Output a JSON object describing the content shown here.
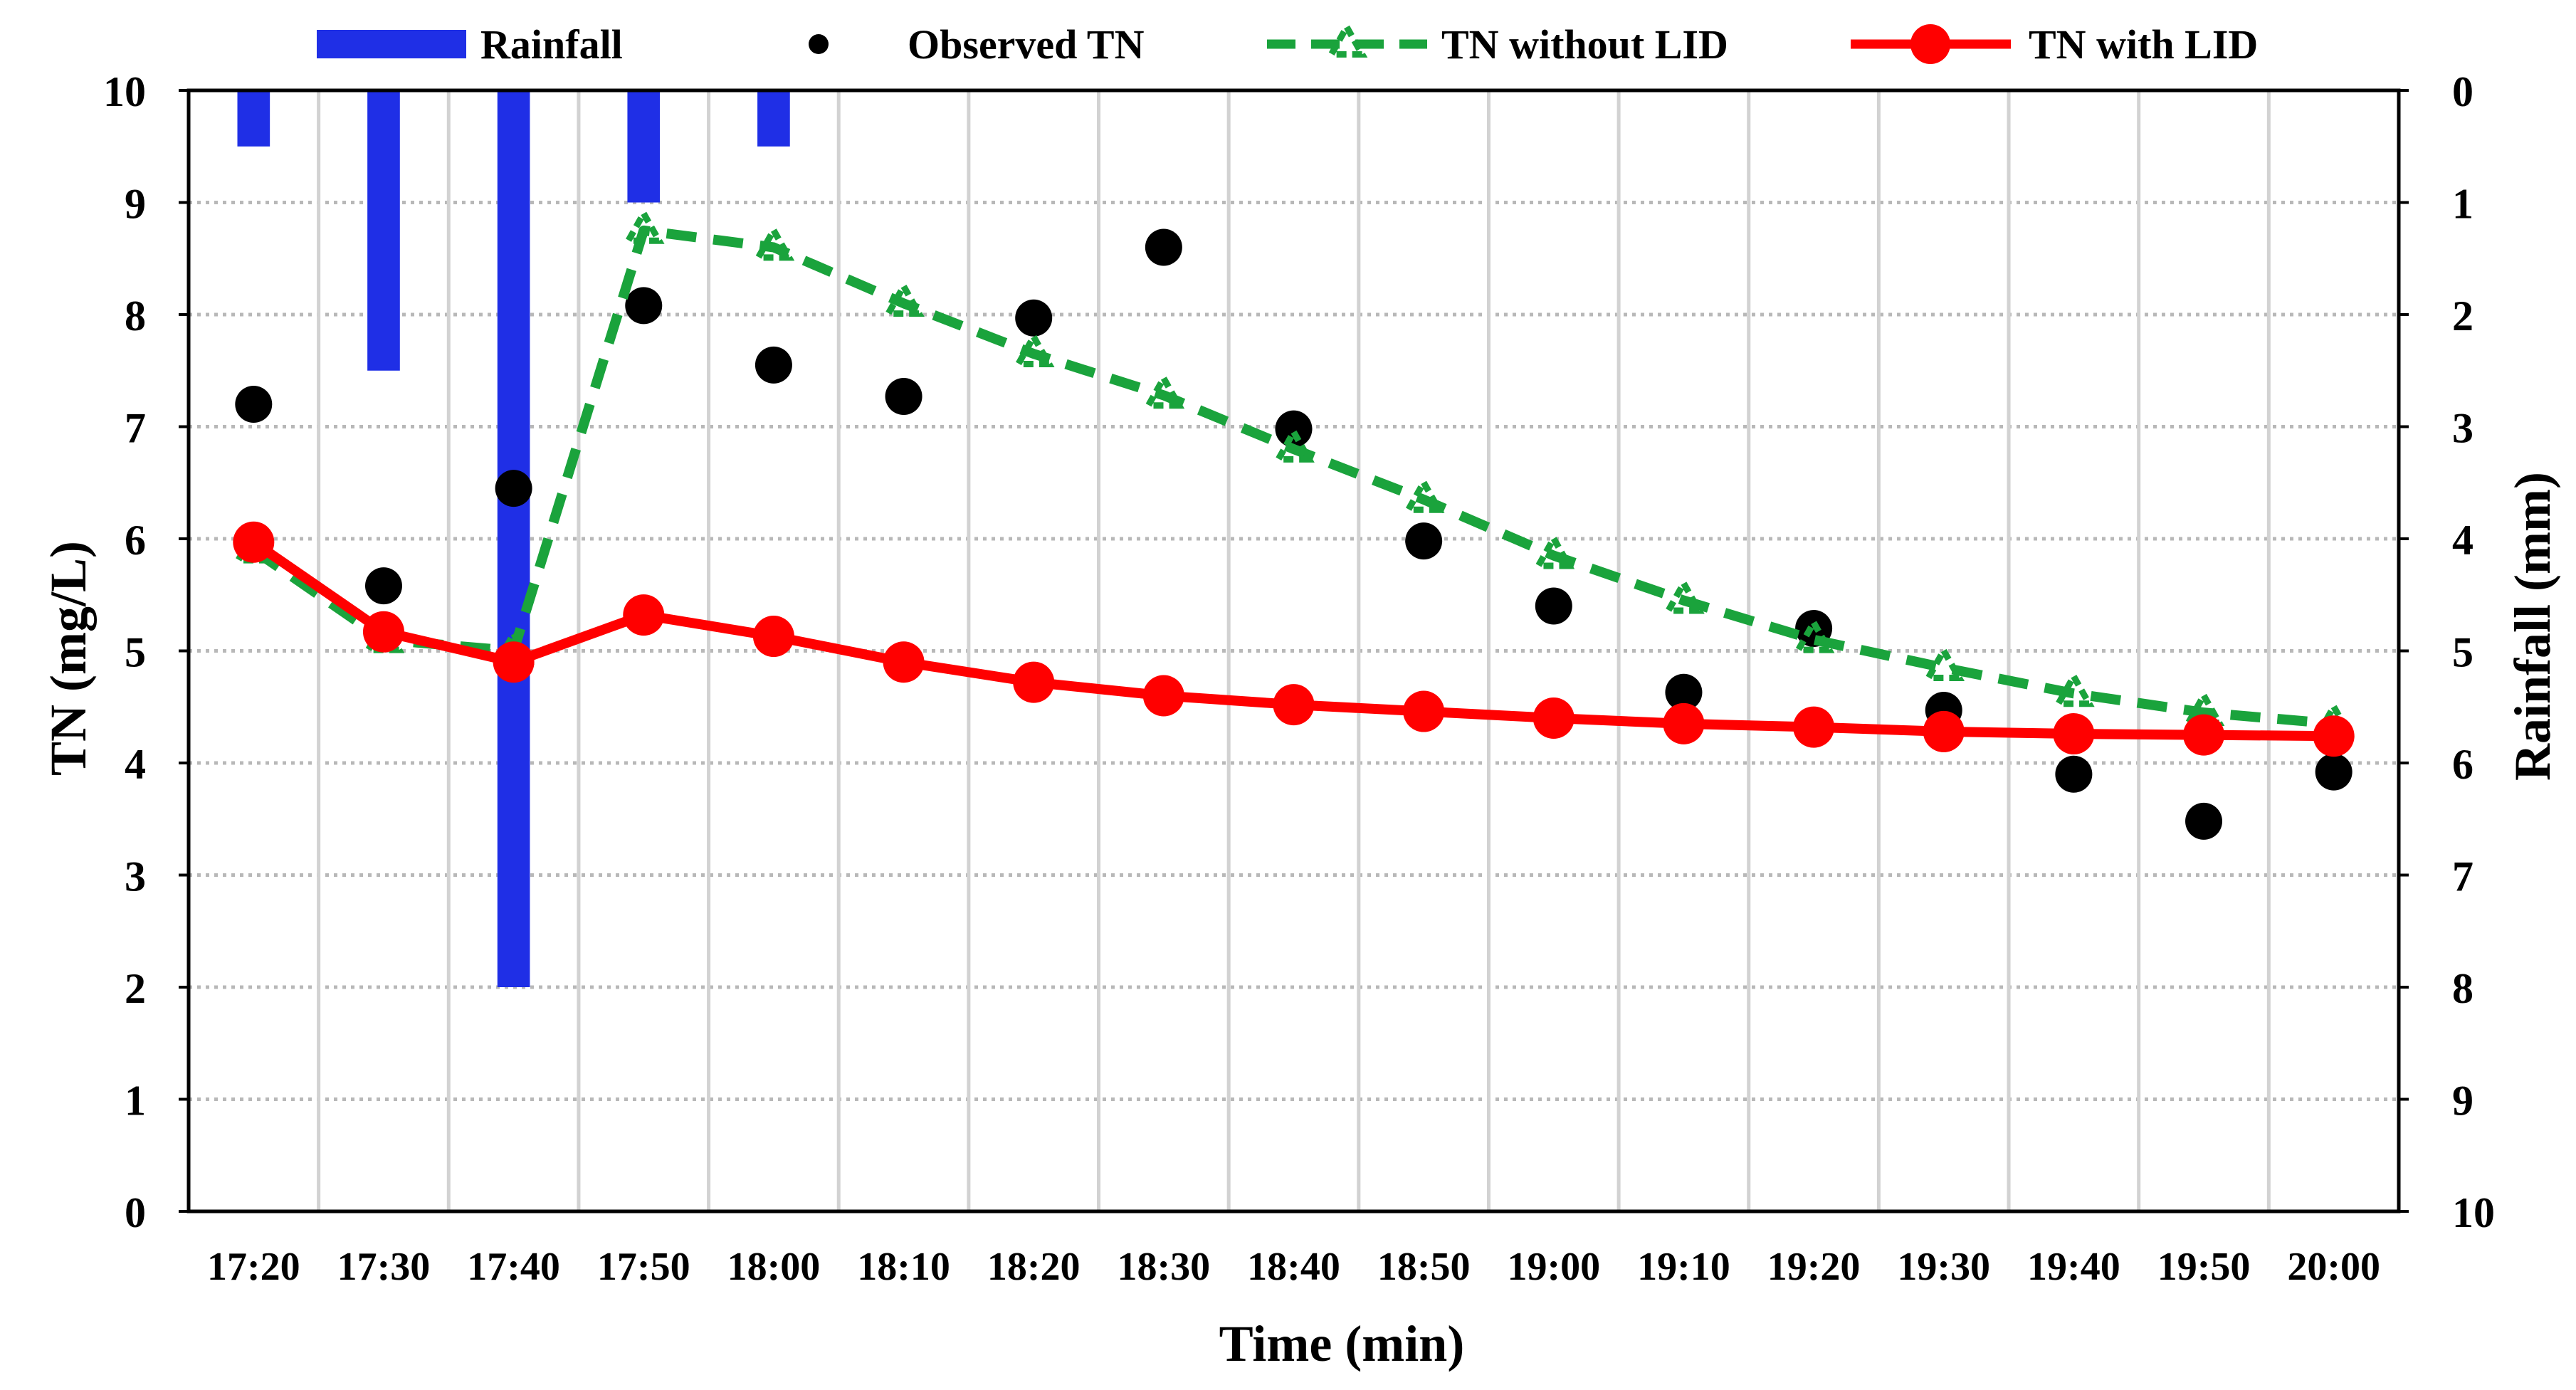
{
  "chart_data": {
    "type": "bar+line+scatter",
    "title": "",
    "xlabel": "Time (min)",
    "ylabel": "TN (mg/L)",
    "y2label": "Rainfall (mm)",
    "ylim": [
      0,
      10
    ],
    "y2lim": [
      0,
      10
    ],
    "y2_inverted": true,
    "yticks": [
      "0",
      "1",
      "2",
      "3",
      "4",
      "5",
      "6",
      "7",
      "8",
      "9",
      "10"
    ],
    "y2ticks": [
      "0",
      "1",
      "2",
      "3",
      "4",
      "5",
      "6",
      "7",
      "8",
      "9",
      "10"
    ],
    "categories": [
      "17:20",
      "17:30",
      "17:40",
      "17:50",
      "18:00",
      "18:10",
      "18:20",
      "18:30",
      "18:40",
      "18:50",
      "19:00",
      "19:10",
      "19:20",
      "19:30",
      "19:40",
      "19:50",
      "20:00"
    ],
    "grid": true,
    "legend_position": "top",
    "series": [
      {
        "name": "Rainfall",
        "kind": "bar",
        "axis": "right",
        "color": "#1f2fe6",
        "x": [
          0,
          1,
          2,
          3,
          4
        ],
        "values": [
          0.5,
          2.5,
          8.0,
          1.0,
          0.5
        ]
      },
      {
        "name": "Observed TN",
        "kind": "scatter",
        "axis": "left",
        "color": "#000000",
        "x": [
          0,
          1,
          2,
          3,
          4,
          5,
          6,
          7,
          8,
          9,
          10,
          11,
          12,
          13,
          14,
          15,
          16
        ],
        "values": [
          7.2,
          5.58,
          6.45,
          8.08,
          7.55,
          7.27,
          7.97,
          8.6,
          6.98,
          5.98,
          5.4,
          4.63,
          5.2,
          4.47,
          3.9,
          3.48,
          3.92
        ]
      },
      {
        "name": "TN without LID",
        "kind": "line",
        "style": "dashed-triangle",
        "axis": "left",
        "color": "#1aa33c",
        "x": [
          0,
          1,
          2,
          3,
          4,
          5,
          6,
          7,
          8,
          9,
          10,
          11,
          12,
          13,
          14,
          15,
          16
        ],
        "values": [
          5.9,
          5.1,
          5.0,
          8.75,
          8.6,
          8.1,
          7.65,
          7.28,
          6.8,
          6.35,
          5.85,
          5.45,
          5.1,
          4.85,
          4.62,
          4.45,
          4.35
        ]
      },
      {
        "name": "TN with LID",
        "kind": "line",
        "style": "solid-circle",
        "axis": "left",
        "color": "#ff0000",
        "x": [
          0,
          1,
          2,
          3,
          4,
          5,
          6,
          7,
          8,
          9,
          10,
          11,
          12,
          13,
          14,
          15,
          16
        ],
        "values": [
          5.97,
          5.17,
          4.9,
          5.32,
          5.13,
          4.9,
          4.72,
          4.6,
          4.52,
          4.46,
          4.4,
          4.35,
          4.32,
          4.28,
          4.26,
          4.25,
          4.24
        ]
      }
    ]
  }
}
